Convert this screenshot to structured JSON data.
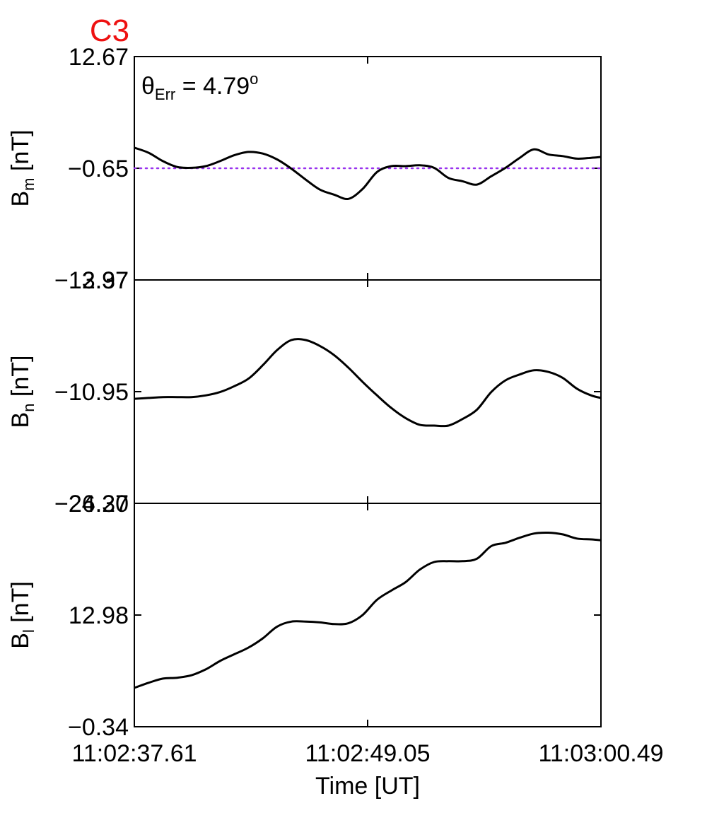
{
  "figure": {
    "title": "C3",
    "title_color": "#ee1111",
    "annotation": {
      "symbol": "θ",
      "subscript": "Err",
      "text": " =  4.79",
      "superscript": "o"
    },
    "xlabel": "Time [UT]",
    "x_tick_labels": [
      "11:02:37.61",
      "11:02:49.05",
      "11:03:00.49"
    ]
  },
  "chart_data": [
    {
      "type": "line",
      "name": "bm-panel",
      "ylabel": {
        "base": "B",
        "sub": "m",
        "unit": " [nT]"
      },
      "ylim": [
        -13.97,
        12.67
      ],
      "y_tick_labels": [
        "12.67",
        "−0.65",
        "−13.97"
      ],
      "xlim": [
        0,
        22.88
      ],
      "line_color": "#000000",
      "reference_line": {
        "y": -0.65,
        "color": "#9933ee",
        "style": "dotted"
      },
      "x": [
        0,
        0.7,
        1.4,
        2.1,
        2.8,
        3.5,
        4.2,
        4.9,
        5.6,
        6.3,
        7.0,
        7.7,
        8.4,
        9.1,
        9.8,
        10.5,
        11.2,
        11.9,
        12.6,
        13.3,
        14.0,
        14.7,
        15.4,
        16.1,
        16.8,
        17.5,
        18.2,
        18.9,
        19.6,
        20.3,
        21.0,
        21.7,
        22.4,
        22.88
      ],
      "y": [
        1.8,
        1.2,
        0.2,
        -0.5,
        -0.6,
        -0.4,
        0.2,
        0.9,
        1.3,
        1.1,
        0.4,
        -0.7,
        -2.0,
        -3.2,
        -3.8,
        -4.3,
        -3.1,
        -1.1,
        -0.4,
        -0.4,
        -0.3,
        -0.6,
        -1.8,
        -2.2,
        -2.6,
        -1.6,
        -0.6,
        0.6,
        1.6,
        1.0,
        0.8,
        0.5,
        0.6,
        0.7
      ]
    },
    {
      "type": "line",
      "name": "bn-panel",
      "ylabel": {
        "base": "B",
        "sub": "n",
        "unit": " [nT]"
      },
      "ylim": [
        -24.27,
        2.37
      ],
      "y_tick_labels": [
        "2.37",
        "−10.95",
        "−24.27"
      ],
      "xlim": [
        0,
        22.88
      ],
      "line_color": "#000000",
      "x": [
        0,
        0.7,
        1.4,
        2.1,
        2.8,
        3.5,
        4.2,
        4.9,
        5.6,
        6.3,
        7.0,
        7.7,
        8.4,
        9.1,
        9.8,
        10.5,
        11.2,
        11.9,
        12.6,
        13.3,
        14.0,
        14.7,
        15.4,
        16.1,
        16.8,
        17.5,
        18.2,
        18.9,
        19.6,
        20.3,
        21.0,
        21.7,
        22.4,
        22.88
      ],
      "y": [
        -11.8,
        -11.7,
        -11.6,
        -11.6,
        -11.6,
        -11.4,
        -11.0,
        -10.3,
        -9.4,
        -7.8,
        -6.0,
        -4.8,
        -4.8,
        -5.5,
        -6.6,
        -8.1,
        -9.8,
        -11.4,
        -12.9,
        -14.1,
        -14.9,
        -15.0,
        -15.0,
        -14.2,
        -13.1,
        -11.0,
        -9.6,
        -8.9,
        -8.4,
        -8.6,
        -9.3,
        -10.6,
        -11.4,
        -11.7
      ]
    },
    {
      "type": "line",
      "name": "bl-panel",
      "ylabel": {
        "base": "B",
        "sub": "l",
        "unit": " [nT]"
      },
      "ylim": [
        -0.34,
        26.3
      ],
      "y_tick_labels": [
        "26.30",
        "12.98",
        "−0.34"
      ],
      "xlim": [
        0,
        22.88
      ],
      "line_color": "#000000",
      "x": [
        0,
        0.7,
        1.4,
        2.1,
        2.8,
        3.5,
        4.2,
        4.9,
        5.6,
        6.3,
        7.0,
        7.7,
        8.4,
        9.1,
        9.8,
        10.5,
        11.2,
        11.9,
        12.6,
        13.3,
        14.0,
        14.7,
        15.4,
        16.1,
        16.8,
        17.5,
        18.2,
        18.9,
        19.6,
        20.3,
        21.0,
        21.7,
        22.4,
        22.88
      ],
      "y": [
        4.3,
        4.9,
        5.4,
        5.5,
        5.8,
        6.5,
        7.5,
        8.3,
        9.1,
        10.2,
        11.6,
        12.2,
        12.2,
        12.1,
        11.9,
        12.0,
        13.0,
        14.8,
        15.9,
        16.9,
        18.4,
        19.3,
        19.4,
        19.4,
        19.7,
        21.2,
        21.6,
        22.2,
        22.7,
        22.8,
        22.6,
        22.1,
        22.0,
        21.9
      ]
    }
  ]
}
